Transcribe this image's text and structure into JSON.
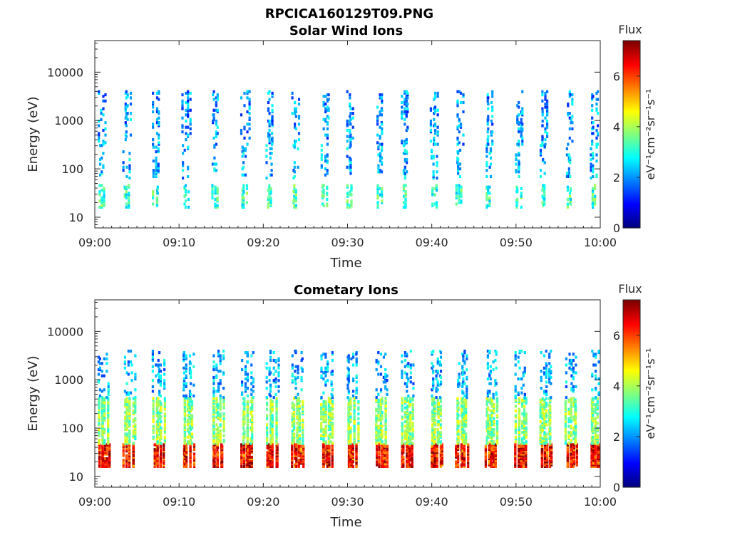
{
  "figure": {
    "filename_title": "RPCICA160129T09.PNG"
  },
  "chart_data": [
    {
      "type": "heatmap",
      "title": "Solar Wind Ions",
      "xlabel": "Time",
      "ylabel": "Energy (eV)",
      "x_tick_labels": [
        "09:00",
        "09:10",
        "09:20",
        "09:30",
        "09:40",
        "09:50",
        "10:00"
      ],
      "x_range": [
        "09:00",
        "10:00"
      ],
      "y_scale": "log",
      "y_tick_labels": [
        "10",
        "100",
        "1000",
        "10000"
      ],
      "ylim": [
        6,
        45000
      ],
      "colorbar": {
        "label": "Flux",
        "unit_label": "eV⁻¹cm⁻²sr⁻¹s⁻¹",
        "ticks": [
          "0",
          "2",
          "4",
          "6"
        ],
        "range": [
          0,
          7.4
        ],
        "colormap": "jet"
      },
      "burst_minutes": [
        1,
        4,
        7.5,
        11,
        14.5,
        18,
        21,
        24,
        27.5,
        30.5,
        34,
        37,
        40.5,
        43.5,
        47,
        50.5,
        53.5,
        56.5,
        59.5
      ],
      "bands": [
        {
          "name": "low",
          "energy_range_eV": [
            15,
            45
          ],
          "typical_flux": 3.2
        },
        {
          "name": "mid",
          "energy_range_eV": [
            60,
            300
          ],
          "typical_flux": 2.2
        },
        {
          "name": "high",
          "energy_range_eV": [
            300,
            4000
          ],
          "typical_flux": 2.0
        }
      ]
    },
    {
      "type": "heatmap",
      "title": "Cometary Ions",
      "xlabel": "Time",
      "ylabel": "Energy (eV)",
      "x_tick_labels": [
        "09:00",
        "09:10",
        "09:20",
        "09:30",
        "09:40",
        "09:50",
        "10:00"
      ],
      "x_range": [
        "09:00",
        "10:00"
      ],
      "y_scale": "log",
      "y_tick_labels": [
        "10",
        "100",
        "1000",
        "10000"
      ],
      "ylim": [
        6,
        45000
      ],
      "colorbar": {
        "label": "Flux",
        "unit_label": "eV⁻¹cm⁻²sr⁻¹s⁻¹",
        "ticks": [
          "0",
          "2",
          "4",
          "6"
        ],
        "range": [
          0,
          7.4
        ],
        "colormap": "jet"
      },
      "burst_minutes": [
        1,
        4,
        7.5,
        11,
        14.5,
        18,
        21,
        24,
        27.5,
        30.5,
        34,
        37,
        40.5,
        43.5,
        47,
        50.5,
        53.5,
        56.5,
        59.5
      ],
      "bands": [
        {
          "name": "low",
          "energy_range_eV": [
            15,
            45
          ],
          "typical_flux": 5.8
        },
        {
          "name": "mid",
          "energy_range_eV": [
            45,
            400
          ],
          "typical_flux": 3.8
        },
        {
          "name": "high",
          "energy_range_eV": [
            400,
            4000
          ],
          "typical_flux": 2.2
        }
      ]
    }
  ]
}
